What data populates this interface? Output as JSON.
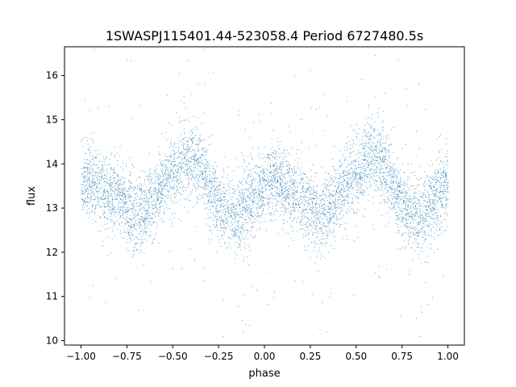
{
  "chart_data": {
    "type": "scatter",
    "title": "1SWASPJ115401.44-523058.4 Period 6727480.5s",
    "xlabel": "phase",
    "ylabel": "flux",
    "xlim": [
      -1.09,
      1.09
    ],
    "ylim": [
      9.9,
      16.65
    ],
    "x_ticks": [
      -1.0,
      -0.75,
      -0.5,
      -0.25,
      0.0,
      0.25,
      0.5,
      0.75,
      1.0
    ],
    "x_tick_labels": [
      "−1.00",
      "−0.75",
      "−0.50",
      "−0.25",
      "0.00",
      "0.25",
      "0.50",
      "0.75",
      "1.00"
    ],
    "y_ticks": [
      10,
      11,
      12,
      13,
      14,
      15,
      16
    ],
    "y_tick_labels": [
      "10",
      "11",
      "12",
      "13",
      "14",
      "15",
      "16"
    ],
    "grid": false,
    "marker_color": "#1f77b4",
    "phase_range": [
      -1.0,
      1.0
    ],
    "trend_points": [
      {
        "x": 0.0,
        "y": 13.6
      },
      {
        "x": 0.05,
        "y": 13.7
      },
      {
        "x": 0.12,
        "y": 13.4
      },
      {
        "x": 0.2,
        "y": 13.3
      },
      {
        "x": 0.25,
        "y": 13.0
      },
      {
        "x": 0.3,
        "y": 12.8
      },
      {
        "x": 0.35,
        "y": 13.0
      },
      {
        "x": 0.42,
        "y": 13.4
      },
      {
        "x": 0.48,
        "y": 13.7
      },
      {
        "x": 0.52,
        "y": 13.8
      },
      {
        "x": 0.56,
        "y": 14.2
      },
      {
        "x": 0.6,
        "y": 14.1
      },
      {
        "x": 0.65,
        "y": 14.0
      },
      {
        "x": 0.7,
        "y": 13.5
      },
      {
        "x": 0.75,
        "y": 13.1
      },
      {
        "x": 0.82,
        "y": 12.8
      },
      {
        "x": 0.87,
        "y": 12.9
      },
      {
        "x": 0.92,
        "y": 13.2
      },
      {
        "x": 0.97,
        "y": 13.4
      },
      {
        "x": 1.0,
        "y": 13.6
      }
    ]
  }
}
